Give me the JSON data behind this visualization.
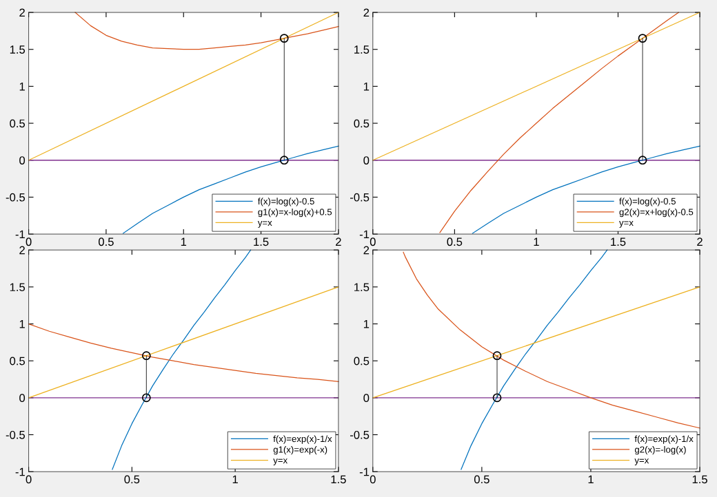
{
  "chart_data": [
    {
      "type": "line",
      "xlim": [
        0,
        2
      ],
      "ylim": [
        -1,
        2
      ],
      "xticks": [
        0,
        0.5,
        1,
        1.5,
        2
      ],
      "yticks": [
        -1,
        -0.5,
        0,
        0.5,
        1,
        1.5,
        2
      ],
      "grid": false,
      "legend": "bottom right",
      "ref_lines": [
        {
          "axis": "y",
          "value": 0,
          "color": "#7e2f8e"
        }
      ],
      "series": [
        {
          "name": "f(x)=log(x)-0.5",
          "color": "#0072bd",
          "x": [
            0.61,
            0.7,
            0.8,
            0.9,
            1.0,
            1.1,
            1.2,
            1.3,
            1.4,
            1.5,
            1.6,
            1.7,
            1.8,
            1.9,
            2.0
          ],
          "values": [
            -0.99,
            -0.86,
            -0.72,
            -0.61,
            -0.5,
            -0.4,
            -0.32,
            -0.24,
            -0.16,
            -0.09,
            -0.03,
            0.03,
            0.09,
            0.14,
            0.19
          ]
        },
        {
          "name": "g1(x)=x-log(x)+0.5",
          "color": "#d95319",
          "x": [
            0.3,
            0.4,
            0.5,
            0.6,
            0.7,
            0.8,
            0.9,
            1.0,
            1.1,
            1.2,
            1.3,
            1.4,
            1.5,
            1.6,
            1.7,
            1.8,
            1.9,
            2.0
          ],
          "values": [
            2.0,
            1.82,
            1.69,
            1.61,
            1.56,
            1.52,
            1.51,
            1.5,
            1.5,
            1.52,
            1.54,
            1.56,
            1.59,
            1.63,
            1.67,
            1.71,
            1.76,
            1.81
          ]
        },
        {
          "name": "y=x",
          "color": "#edb120",
          "x": [
            0,
            2
          ],
          "values": [
            0,
            2
          ]
        },
        {
          "color": "#000000",
          "marker": "circle",
          "x": [
            1.65,
            1.65
          ],
          "values": [
            0,
            1.65
          ]
        }
      ]
    },
    {
      "type": "line",
      "xlim": [
        0,
        2
      ],
      "ylim": [
        -1,
        2
      ],
      "xticks": [
        0,
        0.5,
        1,
        1.5,
        2
      ],
      "yticks": [
        -1,
        -0.5,
        0,
        0.5,
        1,
        1.5,
        2
      ],
      "grid": false,
      "legend": "bottom right",
      "ref_lines": [
        {
          "axis": "y",
          "value": 0,
          "color": "#7e2f8e"
        }
      ],
      "series": [
        {
          "name": "f(x)=log(x)-0.5",
          "color": "#0072bd",
          "x": [
            0.61,
            0.7,
            0.8,
            0.9,
            1.0,
            1.1,
            1.2,
            1.3,
            1.4,
            1.5,
            1.6,
            1.7,
            1.8,
            1.9,
            2.0
          ],
          "values": [
            -0.99,
            -0.86,
            -0.72,
            -0.61,
            -0.5,
            -0.4,
            -0.32,
            -0.24,
            -0.16,
            -0.09,
            -0.03,
            0.03,
            0.09,
            0.14,
            0.19
          ]
        },
        {
          "name": "g2(x)=x+log(x)-0.5",
          "color": "#d95319",
          "x": [
            0.41,
            0.5,
            0.6,
            0.7,
            0.8,
            0.9,
            1.0,
            1.1,
            1.2,
            1.3,
            1.4,
            1.5,
            1.6,
            1.7,
            1.8,
            1.87
          ],
          "values": [
            -0.98,
            -0.69,
            -0.41,
            -0.16,
            0.08,
            0.3,
            0.5,
            0.7,
            0.88,
            1.06,
            1.24,
            1.41,
            1.57,
            1.73,
            1.89,
            2.0
          ]
        },
        {
          "name": "y=x",
          "color": "#edb120",
          "x": [
            0,
            2
          ],
          "values": [
            0,
            2
          ]
        },
        {
          "color": "#000000",
          "marker": "circle",
          "x": [
            1.65,
            1.65
          ],
          "values": [
            0,
            1.65
          ]
        }
      ]
    },
    {
      "type": "line",
      "xlim": [
        0,
        1.5
      ],
      "ylim": [
        -1,
        2
      ],
      "xticks": [
        0,
        0.5,
        1,
        1.5
      ],
      "yticks": [
        -1,
        -0.5,
        0,
        0.5,
        1,
        1.5,
        2
      ],
      "grid": false,
      "legend": "bottom right",
      "ref_lines": [
        {
          "axis": "y",
          "value": 0,
          "color": "#7e2f8e"
        }
      ],
      "series": [
        {
          "name": "f(x)=exp(x)-1/x",
          "color": "#0072bd",
          "x": [
            0.405,
            0.45,
            0.5,
            0.55,
            0.6,
            0.65,
            0.7,
            0.75,
            0.8,
            0.85,
            0.9,
            0.95,
            1.0,
            1.05,
            1.075
          ],
          "values": [
            -0.97,
            -0.65,
            -0.35,
            -0.09,
            0.16,
            0.38,
            0.59,
            0.78,
            0.98,
            1.16,
            1.35,
            1.53,
            1.72,
            1.9,
            2.0
          ]
        },
        {
          "name": "g1(x)=exp(-x)",
          "color": "#d95319",
          "x": [
            0,
            0.1,
            0.2,
            0.3,
            0.4,
            0.5,
            0.6,
            0.7,
            0.8,
            0.9,
            1.0,
            1.1,
            1.2,
            1.3,
            1.4,
            1.5
          ],
          "values": [
            1,
            0.9,
            0.82,
            0.74,
            0.67,
            0.61,
            0.55,
            0.5,
            0.45,
            0.41,
            0.37,
            0.33,
            0.3,
            0.27,
            0.25,
            0.22
          ]
        },
        {
          "name": "y=x",
          "color": "#edb120",
          "x": [
            0,
            1.5
          ],
          "values": [
            0,
            1.5
          ]
        },
        {
          "color": "#000000",
          "marker": "circle",
          "x": [
            0.57,
            0.57
          ],
          "values": [
            0,
            0.57
          ]
        }
      ]
    },
    {
      "type": "line",
      "xlim": [
        0,
        1.5
      ],
      "ylim": [
        -1,
        2
      ],
      "xticks": [
        0,
        0.5,
        1,
        1.5
      ],
      "yticks": [
        -1,
        -0.5,
        0,
        0.5,
        1,
        1.5,
        2
      ],
      "grid": false,
      "legend": "bottom right",
      "ref_lines": [
        {
          "axis": "y",
          "value": 0,
          "color": "#7e2f8e"
        }
      ],
      "series": [
        {
          "name": "f(x)=exp(x)-1/x",
          "color": "#0072bd",
          "x": [
            0.405,
            0.45,
            0.5,
            0.55,
            0.6,
            0.65,
            0.7,
            0.75,
            0.8,
            0.85,
            0.9,
            0.95,
            1.0,
            1.05,
            1.075
          ],
          "values": [
            -0.97,
            -0.65,
            -0.35,
            -0.09,
            0.16,
            0.38,
            0.59,
            0.78,
            0.98,
            1.16,
            1.35,
            1.53,
            1.72,
            1.9,
            2.0
          ]
        },
        {
          "name": "g2(x)=-log(x)",
          "color": "#d95319",
          "x": [
            0.14,
            0.15,
            0.2,
            0.25,
            0.3,
            0.4,
            0.5,
            0.6,
            0.7,
            0.8,
            0.9,
            1.0,
            1.1,
            1.2,
            1.3,
            1.4,
            1.5
          ],
          "values": [
            1.97,
            1.9,
            1.61,
            1.39,
            1.2,
            0.92,
            0.69,
            0.51,
            0.36,
            0.22,
            0.11,
            0,
            -0.1,
            -0.18,
            -0.26,
            -0.34,
            -0.41
          ]
        },
        {
          "name": "y=x",
          "color": "#edb120",
          "x": [
            0,
            1.5
          ],
          "values": [
            0,
            1.5
          ]
        },
        {
          "color": "#000000",
          "marker": "circle",
          "x": [
            0.57,
            0.57
          ],
          "values": [
            0,
            0.57
          ]
        }
      ]
    }
  ]
}
